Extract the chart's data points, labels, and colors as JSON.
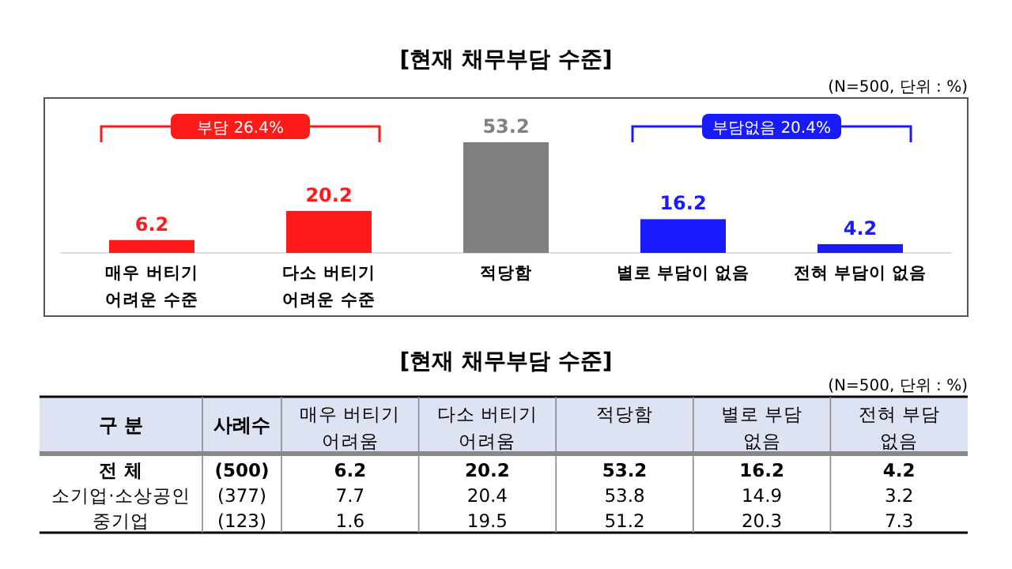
{
  "chart_data": [
    {
      "type": "bar",
      "title": "[현재 채무부담 수준]",
      "subtitle": "(N=500, 단위 : %)",
      "categories": [
        "매우 버티기\n어려운 수준",
        "다소 버티기\n어려운 수준",
        "적당함",
        "별로 부담이 없음",
        "전혀 부담이 없음"
      ],
      "values": [
        6.2,
        20.2,
        53.2,
        16.2,
        4.2
      ],
      "colors": [
        "#ff1a1a",
        "#ff1a1a",
        "#808080",
        "#1a1aff",
        "#1a1aff"
      ],
      "data_labels": true,
      "annotations": [
        "부담 26.4%",
        "부담없음 20.4%"
      ]
    },
    {
      "type": "heatmap",
      "title": "[현재 채무부담 수준]",
      "subtitle": "(N=500, 단위 : %)",
      "ylabel": "구 분",
      "y2label": "사례수",
      "categories": [
        "매우 버티기\n어려움",
        "다소 버티기\n어려움",
        "적당함",
        "별로 부담\n없음",
        "전혀 부담\n없음"
      ],
      "y_categories": [
        "전 체",
        "소기업·소상공인",
        "중기업"
      ],
      "y2_categories": [
        "(500)",
        "(377)",
        "(123)"
      ],
      "cells": [
        [
          6.2,
          20.2,
          53.2,
          16.2,
          4.2
        ],
        [
          7.7,
          20.4,
          53.8,
          14.9,
          3.2
        ],
        [
          1.6,
          19.5,
          51.2,
          20.3,
          7.3
        ]
      ],
      "data_labels": true
    }
  ]
}
